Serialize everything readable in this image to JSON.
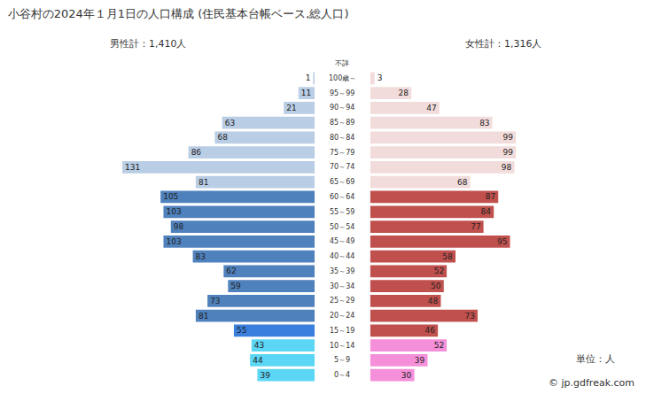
{
  "chart_data": {
    "type": "bar",
    "orientation": "horizontal",
    "title": "小谷村の2024年１月1日の人口構成 (住民基本台帳ベース,総人口)",
    "categories": [
      "不詳",
      "100歳～",
      "95～99",
      "90～94",
      "85～89",
      "80～84",
      "75～79",
      "70～74",
      "65～69",
      "60～64",
      "55～59",
      "50～54",
      "45～49",
      "40～44",
      "35～39",
      "30～34",
      "25～29",
      "20～24",
      "15～19",
      "10～14",
      "5～9",
      "0～4"
    ],
    "series": [
      {
        "name": "男性計：1,410人",
        "values": [
          0,
          1,
          11,
          21,
          63,
          68,
          86,
          131,
          81,
          105,
          103,
          98,
          103,
          83,
          62,
          59,
          73,
          81,
          55,
          43,
          44,
          39
        ],
        "colors": [
          "#b9cde5",
          "#b9cde5",
          "#b9cde5",
          "#b9cde5",
          "#b9cde5",
          "#b9cde5",
          "#b9cde5",
          "#b9cde5",
          "#b9cde5",
          "#4f81bd",
          "#4f81bd",
          "#4f81bd",
          "#4f81bd",
          "#4f81bd",
          "#4f81bd",
          "#4f81bd",
          "#4f81bd",
          "#4f81bd",
          "#3a7fdc",
          "#5cd6f5",
          "#5cd6f5",
          "#5cd6f5"
        ]
      },
      {
        "name": "女性計：1,316人",
        "values": [
          0,
          3,
          28,
          47,
          83,
          99,
          99,
          98,
          68,
          87,
          84,
          77,
          95,
          58,
          52,
          50,
          48,
          73,
          46,
          52,
          39,
          30
        ],
        "colors": [
          "#f2dcdb",
          "#f2dcdb",
          "#f2dcdb",
          "#f2dcdb",
          "#f2dcdb",
          "#f2dcdb",
          "#f2dcdb",
          "#f2dcdb",
          "#f2dcdb",
          "#c0504d",
          "#c0504d",
          "#c0504d",
          "#c0504d",
          "#c0504d",
          "#c0504d",
          "#c0504d",
          "#c0504d",
          "#c0504d",
          "#c0504d",
          "#f58fd9",
          "#f58fd9",
          "#f58fd9"
        ]
      }
    ],
    "xlim": [
      0,
      140
    ],
    "tick_labels": false,
    "grid": false,
    "data_labels": true,
    "annotations": [
      "単位：人",
      "© jp.gdfreak.com"
    ]
  }
}
